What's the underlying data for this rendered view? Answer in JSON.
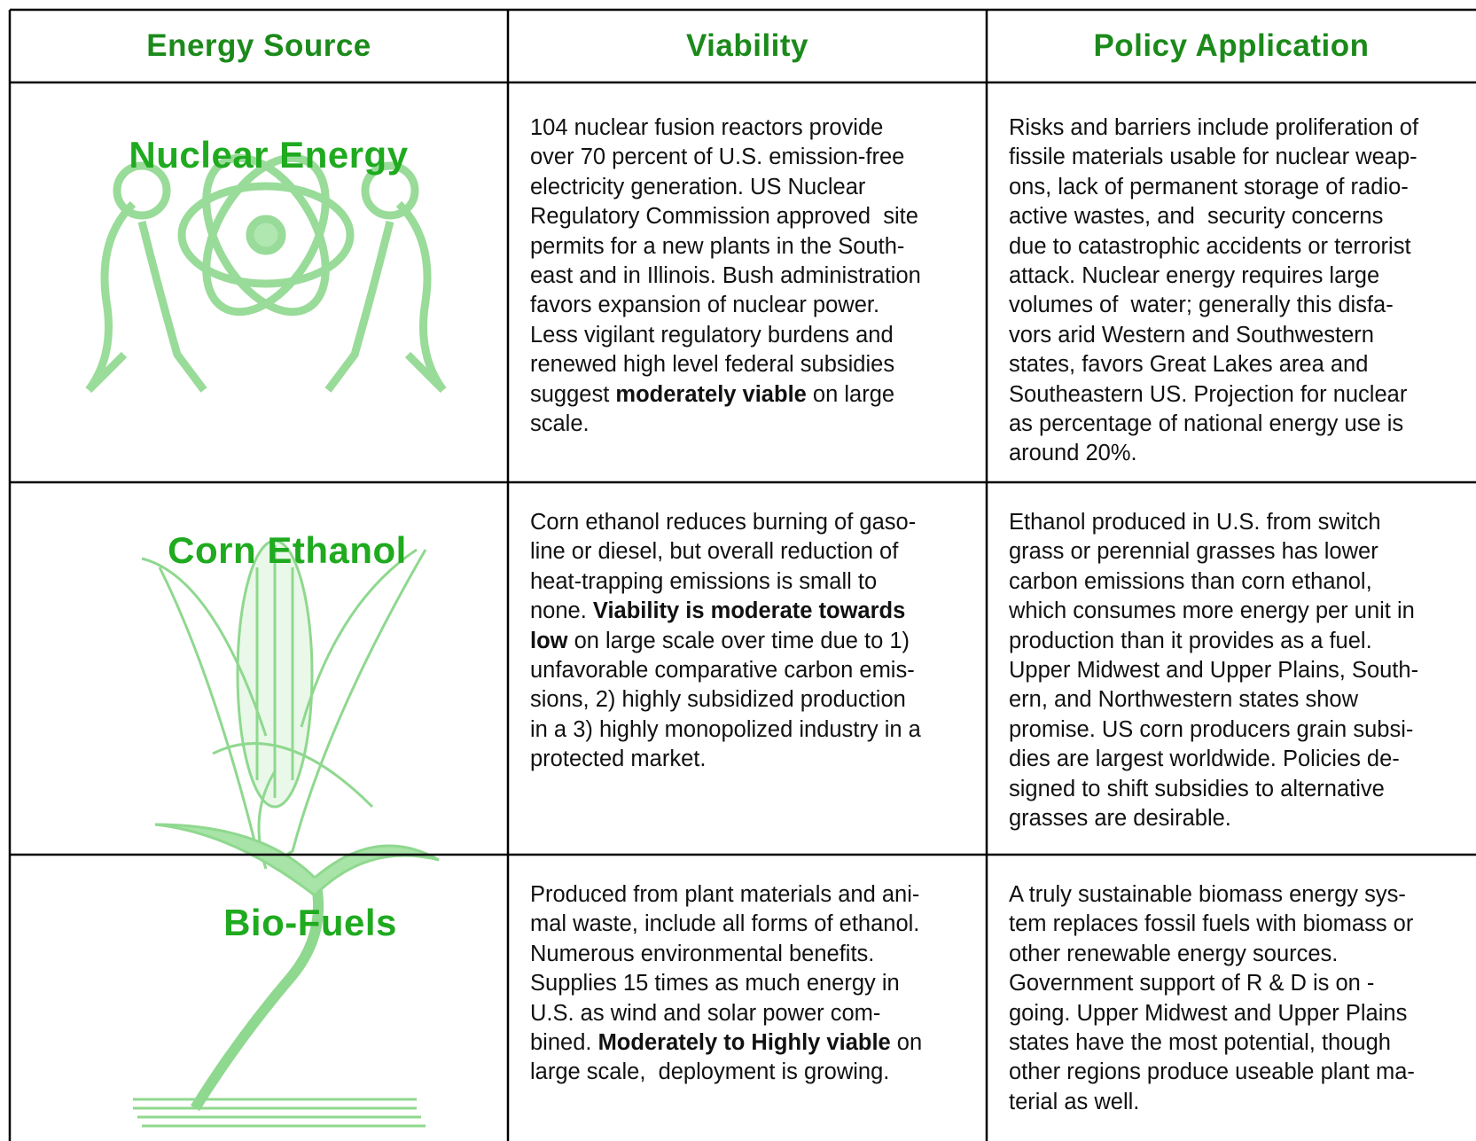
{
  "table": {
    "headers": [
      "Energy Source",
      "Viability",
      "Policy Application"
    ],
    "rows": [
      {
        "source": "Nuclear Energy",
        "viability": [
          [
            {
              "text": "104 nuclear fusion reactors provide"
            }
          ],
          [
            {
              "text": "over 70 percent of U.S. emission-free"
            }
          ],
          [
            {
              "text": "electricity generation. US Nuclear"
            }
          ],
          [
            {
              "text": "Regulatory Commission approved  site"
            }
          ],
          [
            {
              "text": "permits for a new plants in the South-"
            }
          ],
          [
            {
              "text": "east and in Illinois. Bush administration"
            }
          ],
          [
            {
              "text": "favors expansion of nuclear power."
            }
          ],
          [
            {
              "text": "Less vigilant regulatory burdens and"
            }
          ],
          [
            {
              "text": "renewed high level federal subsidies"
            }
          ],
          [
            {
              "text": "suggest "
            },
            {
              "text": "moderately viable",
              "bold": true
            },
            {
              "text": " on large"
            }
          ],
          [
            {
              "text": "scale."
            }
          ]
        ],
        "policy": [
          [
            {
              "text": "Risks and barriers include proliferation of"
            }
          ],
          [
            {
              "text": "fissile materials usable for nuclear weap-"
            }
          ],
          [
            {
              "text": "ons, lack of permanent storage of radio-"
            }
          ],
          [
            {
              "text": "active wastes, and  security concerns"
            }
          ],
          [
            {
              "text": "due to catastrophic accidents or terrorist"
            }
          ],
          [
            {
              "text": "attack. Nuclear energy requires large"
            }
          ],
          [
            {
              "text": "volumes of  water; generally this disfa-"
            }
          ],
          [
            {
              "text": "vors arid Western and Southwestern"
            }
          ],
          [
            {
              "text": "states, favors Great Lakes area and"
            }
          ],
          [
            {
              "text": "Southeastern US. Projection for nuclear"
            }
          ],
          [
            {
              "text": "as percentage of national energy use is"
            }
          ],
          [
            {
              "text": "around 20%."
            }
          ]
        ]
      },
      {
        "source": "Corn Ethanol",
        "viability": [
          [
            {
              "text": "Corn ethanol reduces burning of gaso-"
            }
          ],
          [
            {
              "text": "line or diesel, but overall reduction of"
            }
          ],
          [
            {
              "text": "heat-trapping emissions is small to"
            }
          ],
          [
            {
              "text": "none. "
            },
            {
              "text": "Viability is moderate towards",
              "bold": true
            }
          ],
          [
            {
              "text": "low",
              "bold": true
            },
            {
              "text": " on large scale over time due to 1)"
            }
          ],
          [
            {
              "text": "unfavorable comparative carbon emis-"
            }
          ],
          [
            {
              "text": "sions, 2) highly subsidized production"
            }
          ],
          [
            {
              "text": "in a 3) highly monopolized industry in a"
            }
          ],
          [
            {
              "text": "protected market."
            }
          ]
        ],
        "policy": [
          [
            {
              "text": "Ethanol produced in U.S. from switch"
            }
          ],
          [
            {
              "text": "grass or perennial grasses has lower"
            }
          ],
          [
            {
              "text": "carbon emissions than corn ethanol,"
            }
          ],
          [
            {
              "text": "which consumes more energy per unit in"
            }
          ],
          [
            {
              "text": "production than it provides as a fuel."
            }
          ],
          [
            {
              "text": "Upper Midwest and Upper Plains, South-"
            }
          ],
          [
            {
              "text": "ern, and Northwestern states show"
            }
          ],
          [
            {
              "text": "promise. US corn producers grain subsi-"
            }
          ],
          [
            {
              "text": "dies are largest worldwide. Policies de-"
            }
          ],
          [
            {
              "text": "signed to shift subsidies to alternative"
            }
          ],
          [
            {
              "text": "grasses are desirable."
            }
          ]
        ]
      },
      {
        "source": "Bio-Fuels",
        "viability": [
          [
            {
              "text": "Produced from plant materials and ani-"
            }
          ],
          [
            {
              "text": "mal waste, include all forms of ethanol."
            }
          ],
          [
            {
              "text": "Numerous environmental benefits."
            }
          ],
          [
            {
              "text": "Supplies 15 times as much energy in"
            }
          ],
          [
            {
              "text": "U.S. as wind and solar power com-"
            }
          ],
          [
            {
              "text": "bined. "
            },
            {
              "text": "Moderately to Highly viable",
              "bold": true
            },
            {
              "text": " on"
            }
          ],
          [
            {
              "text": "large scale,  deployment is growing."
            }
          ]
        ],
        "policy": [
          [
            {
              "text": "A truly sustainable biomass energy sys-"
            }
          ],
          [
            {
              "text": "tem replaces fossil fuels with biomass or"
            }
          ],
          [
            {
              "text": "other renewable energy sources."
            }
          ],
          [
            {
              "text": "Government support of R & D is on -"
            }
          ],
          [
            {
              "text": "going. Upper Midwest and Upper Plains"
            }
          ],
          [
            {
              "text": "states have the most potential, though"
            }
          ],
          [
            {
              "text": "other regions produce useable plant ma-"
            }
          ],
          [
            {
              "text": "terial as well."
            }
          ]
        ]
      }
    ]
  }
}
